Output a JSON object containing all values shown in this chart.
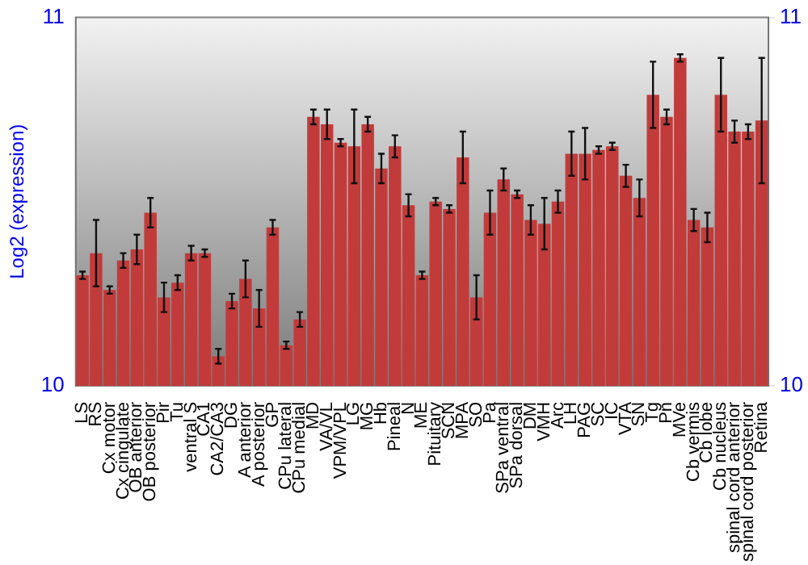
{
  "chart_data": {
    "type": "bar",
    "ylabel": "Log2 (expression)",
    "categories": [
      "LS",
      "RS",
      "Cx motor",
      "Cx cingulate",
      "OB anterior",
      "OB posterior",
      "Pir",
      "Tu",
      "ventral S",
      "CA1",
      "CA2/CA3",
      "DG",
      "A anterior",
      "A posterior",
      "GP",
      "CPu lateral",
      "CPu medial",
      "MD",
      "VA/VL",
      "VPM/VPL",
      "LG",
      "MG",
      "Hb",
      "Pineal",
      "N",
      "ME",
      "Pituitary",
      "SCN",
      "MPA",
      "SO",
      "Pa",
      "SPa ventral",
      "SPa dorsal",
      "DM",
      "VMH",
      "Arc",
      "LH",
      "PAG",
      "SC",
      "IC",
      "VTA",
      "SN",
      "Tg",
      "Pn",
      "MVe",
      "Cb vermis",
      "Cb lobe",
      "Cb nucleus",
      "spinal cord anterior",
      "spinal cord posterior",
      "Retina"
    ],
    "values": [
      10.3,
      10.36,
      10.26,
      10.34,
      10.37,
      10.47,
      10.24,
      10.28,
      10.36,
      10.36,
      10.08,
      10.23,
      10.29,
      10.21,
      10.43,
      10.11,
      10.18,
      10.73,
      10.71,
      10.66,
      10.65,
      10.71,
      10.59,
      10.65,
      10.49,
      10.3,
      10.5,
      10.48,
      10.62,
      10.24,
      10.47,
      10.56,
      10.52,
      10.45,
      10.44,
      10.5,
      10.63,
      10.63,
      10.64,
      10.65,
      10.57,
      10.51,
      10.79,
      10.73,
      10.89,
      10.45,
      10.43,
      10.79,
      10.69,
      10.69,
      10.72
    ],
    "errors": [
      0.01,
      0.09,
      0.01,
      0.02,
      0.04,
      0.04,
      0.04,
      0.02,
      0.02,
      0.01,
      0.02,
      0.02,
      0.05,
      0.05,
      0.02,
      0.01,
      0.02,
      0.02,
      0.04,
      0.01,
      0.1,
      0.02,
      0.04,
      0.03,
      0.03,
      0.01,
      0.01,
      0.01,
      0.07,
      0.06,
      0.06,
      0.03,
      0.01,
      0.04,
      0.07,
      0.03,
      0.06,
      0.07,
      0.01,
      0.01,
      0.03,
      0.05,
      0.09,
      0.02,
      0.01,
      0.03,
      0.04,
      0.1,
      0.03,
      0.02,
      0.17
    ],
    "color": "#c23b3b",
    "ylim": [
      10,
      11
    ],
    "yticks": [
      10,
      11
    ],
    "y2lim": [
      10,
      11
    ],
    "y2ticks": [
      10,
      11
    ]
  }
}
